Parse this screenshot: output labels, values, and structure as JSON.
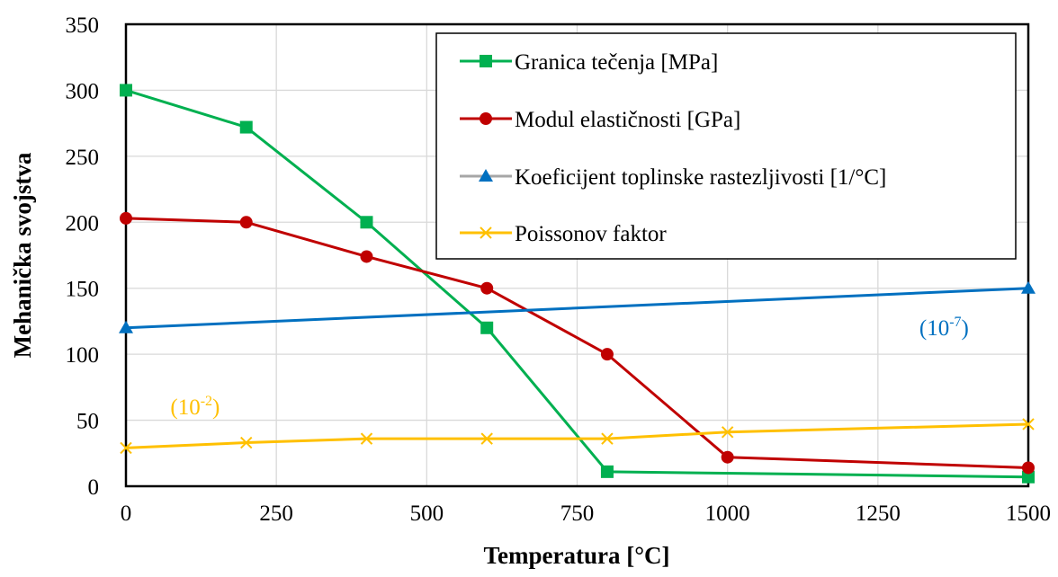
{
  "chart_data": {
    "type": "line",
    "title": "",
    "xlabel": "Temperatura [°C]",
    "ylabel": "Mehanička svojstva",
    "xlim": [
      0,
      1500
    ],
    "ylim": [
      0,
      350
    ],
    "xticks": [
      0,
      250,
      500,
      750,
      1000,
      1250,
      1500
    ],
    "yticks": [
      0,
      50,
      100,
      150,
      200,
      250,
      300,
      350
    ],
    "grid": true,
    "legend_position": "top-right",
    "series": [
      {
        "name": "Granica tečenja [MPa]",
        "color": "#00b050",
        "marker": "square",
        "x": [
          0,
          200,
          400,
          600,
          800,
          1500
        ],
        "y": [
          300,
          272,
          200,
          120,
          11,
          7
        ]
      },
      {
        "name": "Modul elastičnosti [GPa]",
        "color": "#c00000",
        "marker": "circle",
        "x": [
          0,
          200,
          400,
          600,
          800,
          1000,
          1500
        ],
        "y": [
          203,
          200,
          174,
          150,
          100,
          22,
          14
        ]
      },
      {
        "name": "Koeficijent toplinske rastezljivosti [1/°C]",
        "color": "#0070c0",
        "legend_line_color": "#a6a6a6",
        "marker": "triangle",
        "x": [
          0,
          1500
        ],
        "y": [
          120,
          150
        ]
      },
      {
        "name": "Poissonov faktor",
        "color": "#ffc000",
        "marker": "x",
        "x": [
          0,
          200,
          400,
          600,
          800,
          1000,
          1500
        ],
        "y": [
          29,
          33,
          36,
          36,
          36,
          41,
          47
        ]
      }
    ],
    "annotations": [
      {
        "base": "(10",
        "exponent": "-7",
        "close": ")",
        "color": "#0070c0",
        "x": 1360,
        "y": 120
      },
      {
        "base": "(10",
        "exponent": "-2",
        "close": ")",
        "color": "#ffc000",
        "x": 115,
        "y": 60
      }
    ]
  }
}
